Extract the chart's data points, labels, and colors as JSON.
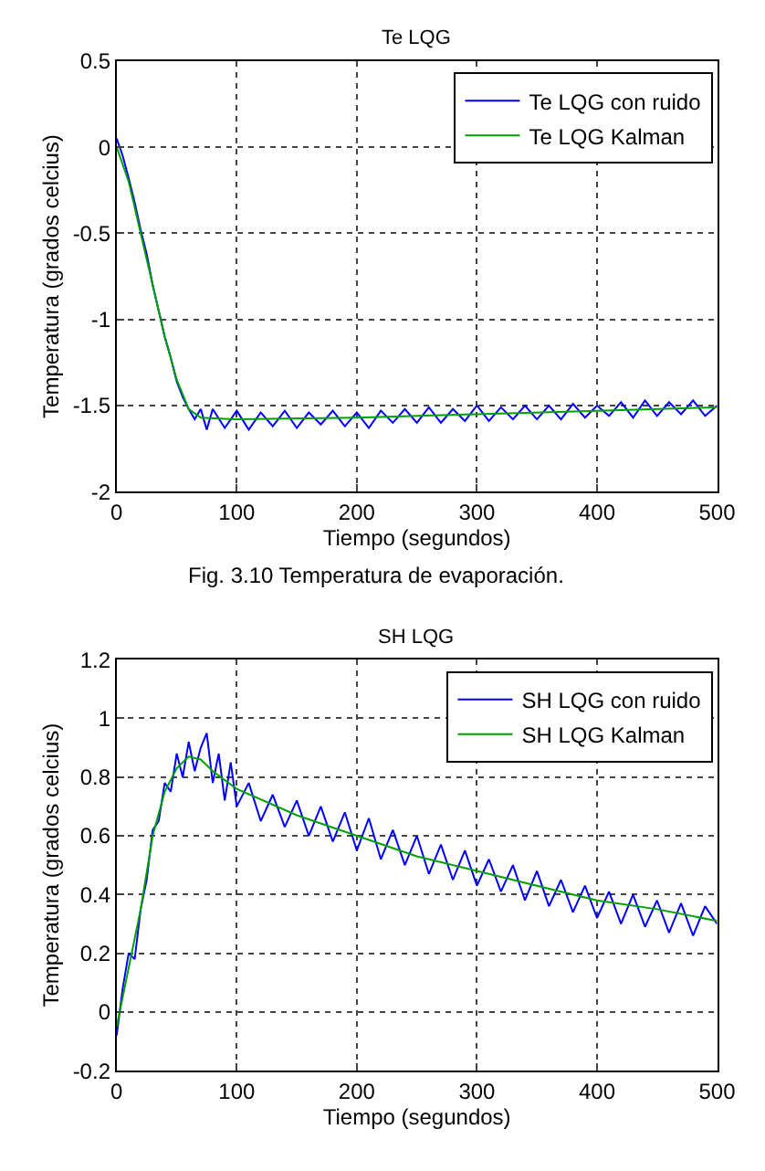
{
  "chart_data": [
    {
      "type": "line",
      "title": "Te LQG",
      "xlabel": "Tiempo (segundos)",
      "ylabel": "Temperatura (grados celcius)",
      "xlim": [
        0,
        500
      ],
      "xticks": [
        0,
        100,
        200,
        300,
        400,
        500
      ],
      "ylim": [
        -2,
        0.5
      ],
      "yticks": [
        -2,
        -1.5,
        -1,
        -0.5,
        0,
        0.5
      ],
      "grid": true,
      "legend": "top right",
      "line_style": "solid",
      "annotations": [
        "Fig. 3.10 Temperatura de evaporación."
      ],
      "series": [
        {
          "name": "Te LQG con ruido",
          "color": "#0000ff",
          "x": [
            0,
            5,
            10,
            15,
            20,
            25,
            30,
            35,
            40,
            45,
            50,
            55,
            60,
            65,
            70,
            75,
            80,
            90,
            100,
            110,
            120,
            130,
            140,
            150,
            160,
            170,
            180,
            190,
            200,
            210,
            220,
            230,
            240,
            250,
            260,
            270,
            280,
            290,
            300,
            310,
            320,
            330,
            340,
            350,
            360,
            370,
            380,
            390,
            400,
            410,
            420,
            430,
            440,
            450,
            460,
            470,
            480,
            490,
            500
          ],
          "values": [
            0.05,
            -0.05,
            -0.18,
            -0.32,
            -0.48,
            -0.62,
            -0.8,
            -0.95,
            -1.1,
            -1.22,
            -1.36,
            -1.45,
            -1.52,
            -1.58,
            -1.52,
            -1.64,
            -1.52,
            -1.63,
            -1.53,
            -1.64,
            -1.54,
            -1.62,
            -1.53,
            -1.63,
            -1.54,
            -1.61,
            -1.53,
            -1.62,
            -1.54,
            -1.63,
            -1.53,
            -1.6,
            -1.52,
            -1.6,
            -1.51,
            -1.6,
            -1.52,
            -1.59,
            -1.5,
            -1.59,
            -1.51,
            -1.58,
            -1.5,
            -1.58,
            -1.5,
            -1.58,
            -1.49,
            -1.57,
            -1.5,
            -1.56,
            -1.48,
            -1.57,
            -1.47,
            -1.56,
            -1.48,
            -1.55,
            -1.47,
            -1.56,
            -1.5
          ]
        },
        {
          "name": "Te LQG Kalman",
          "color": "#00a000",
          "x": [
            0,
            10,
            20,
            30,
            40,
            50,
            60,
            70,
            100,
            200,
            300,
            400,
            500
          ],
          "values": [
            0,
            -0.2,
            -0.5,
            -0.8,
            -1.1,
            -1.35,
            -1.52,
            -1.57,
            -1.58,
            -1.57,
            -1.55,
            -1.53,
            -1.51
          ]
        }
      ]
    },
    {
      "type": "line",
      "title": "SH LQG",
      "xlabel": "Tiempo (segundos)",
      "ylabel": "Temperatura (grados celcius)",
      "xlim": [
        0,
        500
      ],
      "xticks": [
        0,
        100,
        200,
        300,
        400,
        500
      ],
      "ylim": [
        -0.2,
        1.2
      ],
      "yticks": [
        -0.2,
        0,
        0.2,
        0.4,
        0.6,
        0.8,
        1,
        1.2
      ],
      "grid": true,
      "legend": "top right",
      "line_style": "solid",
      "series": [
        {
          "name": "SH LQG con ruido",
          "color": "#0000ff",
          "x": [
            0,
            5,
            10,
            15,
            20,
            25,
            30,
            35,
            40,
            45,
            50,
            55,
            60,
            65,
            70,
            75,
            80,
            85,
            90,
            95,
            100,
            110,
            120,
            130,
            140,
            150,
            160,
            170,
            180,
            190,
            200,
            210,
            220,
            230,
            240,
            250,
            260,
            270,
            280,
            290,
            300,
            310,
            320,
            330,
            340,
            350,
            360,
            370,
            380,
            390,
            400,
            410,
            420,
            430,
            440,
            450,
            460,
            470,
            480,
            490,
            500
          ],
          "values": [
            -0.08,
            0.08,
            0.2,
            0.18,
            0.35,
            0.45,
            0.62,
            0.65,
            0.78,
            0.75,
            0.88,
            0.8,
            0.92,
            0.82,
            0.9,
            0.95,
            0.78,
            0.88,
            0.72,
            0.85,
            0.7,
            0.78,
            0.65,
            0.74,
            0.63,
            0.72,
            0.6,
            0.7,
            0.58,
            0.68,
            0.55,
            0.66,
            0.52,
            0.62,
            0.5,
            0.6,
            0.47,
            0.57,
            0.45,
            0.55,
            0.43,
            0.52,
            0.41,
            0.5,
            0.38,
            0.48,
            0.36,
            0.45,
            0.34,
            0.43,
            0.32,
            0.41,
            0.3,
            0.4,
            0.29,
            0.38,
            0.27,
            0.37,
            0.26,
            0.36,
            0.3
          ]
        },
        {
          "name": "SH LQG Kalman",
          "color": "#00a000",
          "x": [
            0,
            10,
            20,
            30,
            40,
            50,
            60,
            70,
            80,
            100,
            150,
            200,
            250,
            300,
            350,
            400,
            450,
            500
          ],
          "values": [
            -0.05,
            0.15,
            0.35,
            0.6,
            0.75,
            0.83,
            0.87,
            0.86,
            0.82,
            0.76,
            0.67,
            0.6,
            0.53,
            0.48,
            0.43,
            0.38,
            0.35,
            0.31
          ]
        }
      ]
    }
  ]
}
